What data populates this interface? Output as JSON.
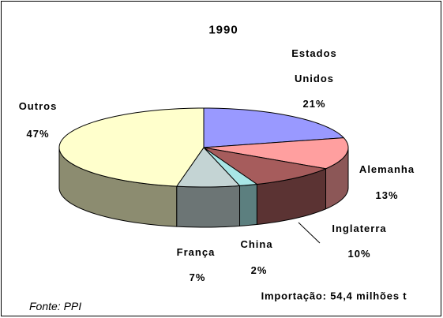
{
  "chart_data": {
    "type": "pie3d",
    "title": "1990",
    "categories": [
      "Estados Unidos",
      "Alemanha",
      "Inglaterra",
      "China",
      "França",
      "Outros"
    ],
    "values": [
      21,
      13,
      10,
      2,
      7,
      47
    ],
    "value_labels": [
      "21%",
      "13%",
      "10%",
      "2%",
      "7%",
      "47%"
    ],
    "colors": [
      "#9999ff",
      "#ff9f9f",
      "#a65c5c",
      "#a8e6e6",
      "#c4d4d4",
      "#ffffcc"
    ],
    "annotations": [
      "Importação: 54,4 milhões t",
      "Fonte: PPI"
    ]
  }
}
